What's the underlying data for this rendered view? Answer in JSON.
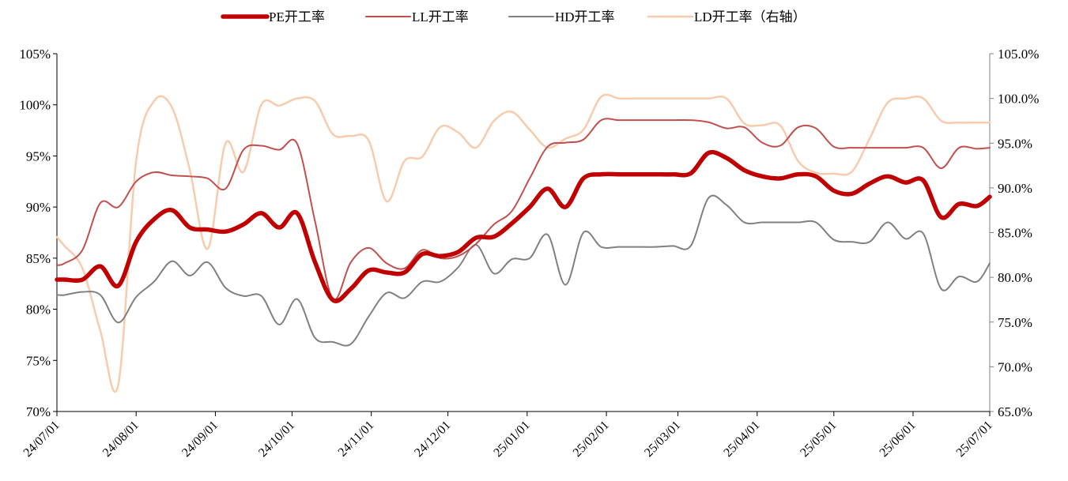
{
  "chart_data": {
    "type": "line",
    "legend_position": "top",
    "grid": false,
    "y_left": {
      "min": 70,
      "max": 105,
      "step": 5,
      "tick_labels": [
        "70%",
        "75%",
        "80%",
        "85%",
        "90%",
        "95%",
        "100%",
        "105%"
      ]
    },
    "y_right": {
      "min": 65,
      "max": 105,
      "step": 5,
      "tick_labels": [
        "65.0%",
        "70.0%",
        "75.0%",
        "80.0%",
        "85.0%",
        "90.0%",
        "95.0%",
        "100.0%",
        "105.0%"
      ]
    },
    "x_ticks": [
      "24/07/01",
      "24/08/01",
      "24/09/01",
      "24/10/01",
      "24/11/01",
      "24/12/01",
      "25/01/01",
      "25/02/01",
      "25/03/01",
      "25/04/01",
      "25/05/01",
      "25/06/01",
      "25/07/01"
    ],
    "x_tick_dates": [
      "2024-07-01",
      "2024-08-01",
      "2024-09-01",
      "2024-10-01",
      "2024-11-01",
      "2024-12-01",
      "2025-01-01",
      "2025-02-01",
      "2025-03-01",
      "2025-04-01",
      "2025-05-01",
      "2025-06-01",
      "2025-07-01"
    ],
    "dates": [
      "2024-07-01",
      "2024-07-04",
      "2024-07-11",
      "2024-07-18",
      "2024-07-25",
      "2024-08-01",
      "2024-08-08",
      "2024-08-15",
      "2024-08-22",
      "2024-08-29",
      "2024-09-05",
      "2024-09-12",
      "2024-09-19",
      "2024-09-26",
      "2024-10-03",
      "2024-10-10",
      "2024-10-17",
      "2024-10-24",
      "2024-10-31",
      "2024-11-07",
      "2024-11-14",
      "2024-11-21",
      "2024-11-28",
      "2024-12-05",
      "2024-12-12",
      "2024-12-19",
      "2024-12-26",
      "2025-01-02",
      "2025-01-09",
      "2025-01-16",
      "2025-01-23",
      "2025-01-30",
      "2025-02-06",
      "2025-02-13",
      "2025-02-20",
      "2025-02-27",
      "2025-03-06",
      "2025-03-13",
      "2025-03-20",
      "2025-03-27",
      "2025-04-03",
      "2025-04-10",
      "2025-04-17",
      "2025-04-24",
      "2025-05-01",
      "2025-05-08",
      "2025-05-15",
      "2025-05-22",
      "2025-05-29",
      "2025-06-05",
      "2025-06-12",
      "2025-06-19",
      "2025-06-26",
      "2025-07-01"
    ],
    "series": [
      {
        "name": "PE开工率",
        "axis": "left",
        "color": "#c00000",
        "width": 5.5,
        "values": [
          82.9,
          82.9,
          82.9,
          84.2,
          82.3,
          86.6,
          88.8,
          89.7,
          88.0,
          87.8,
          87.6,
          88.3,
          89.4,
          88.0,
          89.4,
          84.6,
          80.9,
          82.0,
          83.8,
          83.6,
          83.6,
          85.4,
          85.2,
          85.6,
          87.0,
          87.1,
          88.4,
          90.0,
          91.8,
          90.0,
          92.8,
          93.2,
          93.2,
          93.2,
          93.2,
          93.2,
          93.3,
          95.3,
          94.8,
          93.6,
          93.0,
          92.8,
          93.2,
          93.0,
          91.6,
          91.3,
          92.3,
          93.0,
          92.4,
          92.6,
          89.0,
          90.3,
          90.1,
          91.0
        ]
      },
      {
        "name": "LL开工率",
        "axis": "left",
        "color": "#c0504d",
        "width": 2,
        "values": [
          84.3,
          84.5,
          85.8,
          90.4,
          90.0,
          92.5,
          93.4,
          93.1,
          93.0,
          92.8,
          91.8,
          95.6,
          96.0,
          95.6,
          96.2,
          88.6,
          81.0,
          84.6,
          86.0,
          84.5,
          84.0,
          85.8,
          85.0,
          85.2,
          86.4,
          88.3,
          89.6,
          92.8,
          95.9,
          96.3,
          96.6,
          98.5,
          98.5,
          98.5,
          98.5,
          98.5,
          98.5,
          98.3,
          97.7,
          97.8,
          96.3,
          96.0,
          97.8,
          97.7,
          95.9,
          95.8,
          95.8,
          95.8,
          95.8,
          95.8,
          93.8,
          95.8,
          95.7,
          95.8
        ]
      },
      {
        "name": "HD开工率",
        "axis": "left",
        "color": "#808080",
        "width": 2,
        "values": [
          81.4,
          81.4,
          81.7,
          81.4,
          78.7,
          81.2,
          82.7,
          84.7,
          83.3,
          84.6,
          82.1,
          81.3,
          81.3,
          78.5,
          81.0,
          77.2,
          76.8,
          76.6,
          79.3,
          81.6,
          81.1,
          82.7,
          82.7,
          84.1,
          86.3,
          83.5,
          84.9,
          85.0,
          87.3,
          82.4,
          87.5,
          86.1,
          86.1,
          86.1,
          86.1,
          86.2,
          86.2,
          90.9,
          90.2,
          88.5,
          88.5,
          88.5,
          88.5,
          88.5,
          86.8,
          86.6,
          86.6,
          88.5,
          86.9,
          87.4,
          82.0,
          83.2,
          82.7,
          84.5
        ]
      },
      {
        "name": "LD开工率（右轴）",
        "axis": "right",
        "color": "#f8cbad",
        "width": 2.5,
        "values": [
          84.5,
          83.5,
          81.0,
          74.0,
          68.0,
          93.0,
          99.7,
          99.0,
          92.0,
          83.2,
          95.0,
          91.8,
          99.3,
          99.2,
          100.0,
          99.7,
          96.0,
          95.8,
          95.3,
          88.5,
          93.0,
          93.5,
          96.8,
          96.2,
          94.5,
          97.5,
          98.5,
          96.5,
          94.5,
          95.5,
          96.5,
          100.2,
          100.0,
          100.0,
          100.0,
          100.0,
          100.0,
          100.0,
          100.0,
          97.2,
          97.0,
          97.0,
          93.0,
          91.7,
          91.6,
          91.8,
          95.5,
          99.5,
          100.0,
          100.0,
          97.5,
          97.3,
          97.3,
          97.3
        ]
      }
    ]
  }
}
